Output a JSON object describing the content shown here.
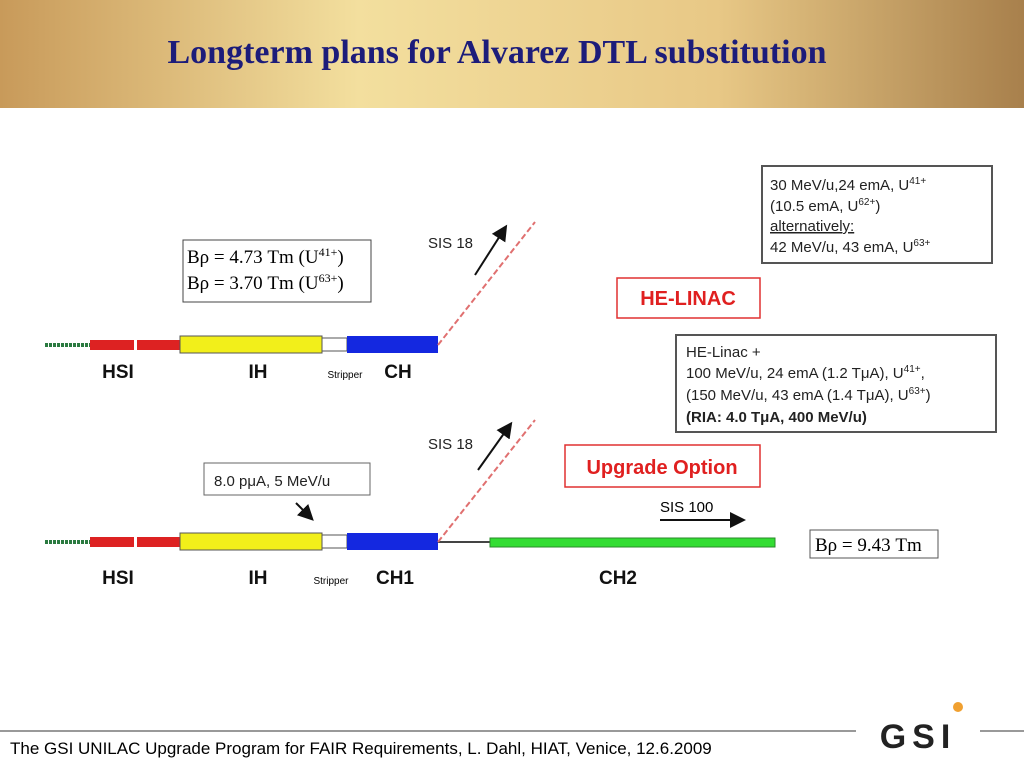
{
  "header": {
    "title": "Longterm plans for Alvarez DTL substitution"
  },
  "footer": {
    "text": "The GSI UNILAC Upgrade Program for FAIR Requirements, L. Dahl, HIAT, Venice, 12.6.2009",
    "logo": "GSI"
  },
  "linac": {
    "labels": [
      "HSI",
      "IH",
      "Stripper",
      "CH"
    ],
    "extraction": "SIS 18",
    "rigidity": [
      [
        "Bρ = 4.73 Tm (U",
        "41+",
        ")"
      ],
      [
        "Bρ = 3.70 Tm (U",
        "63+",
        ")"
      ]
    ],
    "beam_note": [
      [
        "30 MeV/u,24 emA, U",
        "41+"
      ],
      [
        "(10.5 emA, U",
        "62+",
        ")"
      ],
      [
        "alternatively:"
      ],
      [
        "42 MeV/u, 43 emA, U",
        "63+"
      ]
    ],
    "name": "HE-LINAC",
    "he_note": [
      [
        "HE-Linac +"
      ],
      [
        "100 MeV/u, 24 emA (1.2 TμA), U",
        "41+",
        ","
      ],
      [
        "(150 MeV/u, 43 emA (1.4 TμA), U",
        "63+",
        ")"
      ],
      [
        "(RIA: 4.0 TμA, 400 MeV/u)"
      ]
    ]
  },
  "upgrade": {
    "labels": [
      "HSI",
      "IH",
      "Stripper",
      "CH1",
      "CH2"
    ],
    "extraction": "SIS 18",
    "name": "Upgrade Option",
    "injection": "8.0 pμA, 5 MeV/u",
    "sis100": "SIS 100",
    "rigidity": "Bρ = 9.43 Tm"
  }
}
